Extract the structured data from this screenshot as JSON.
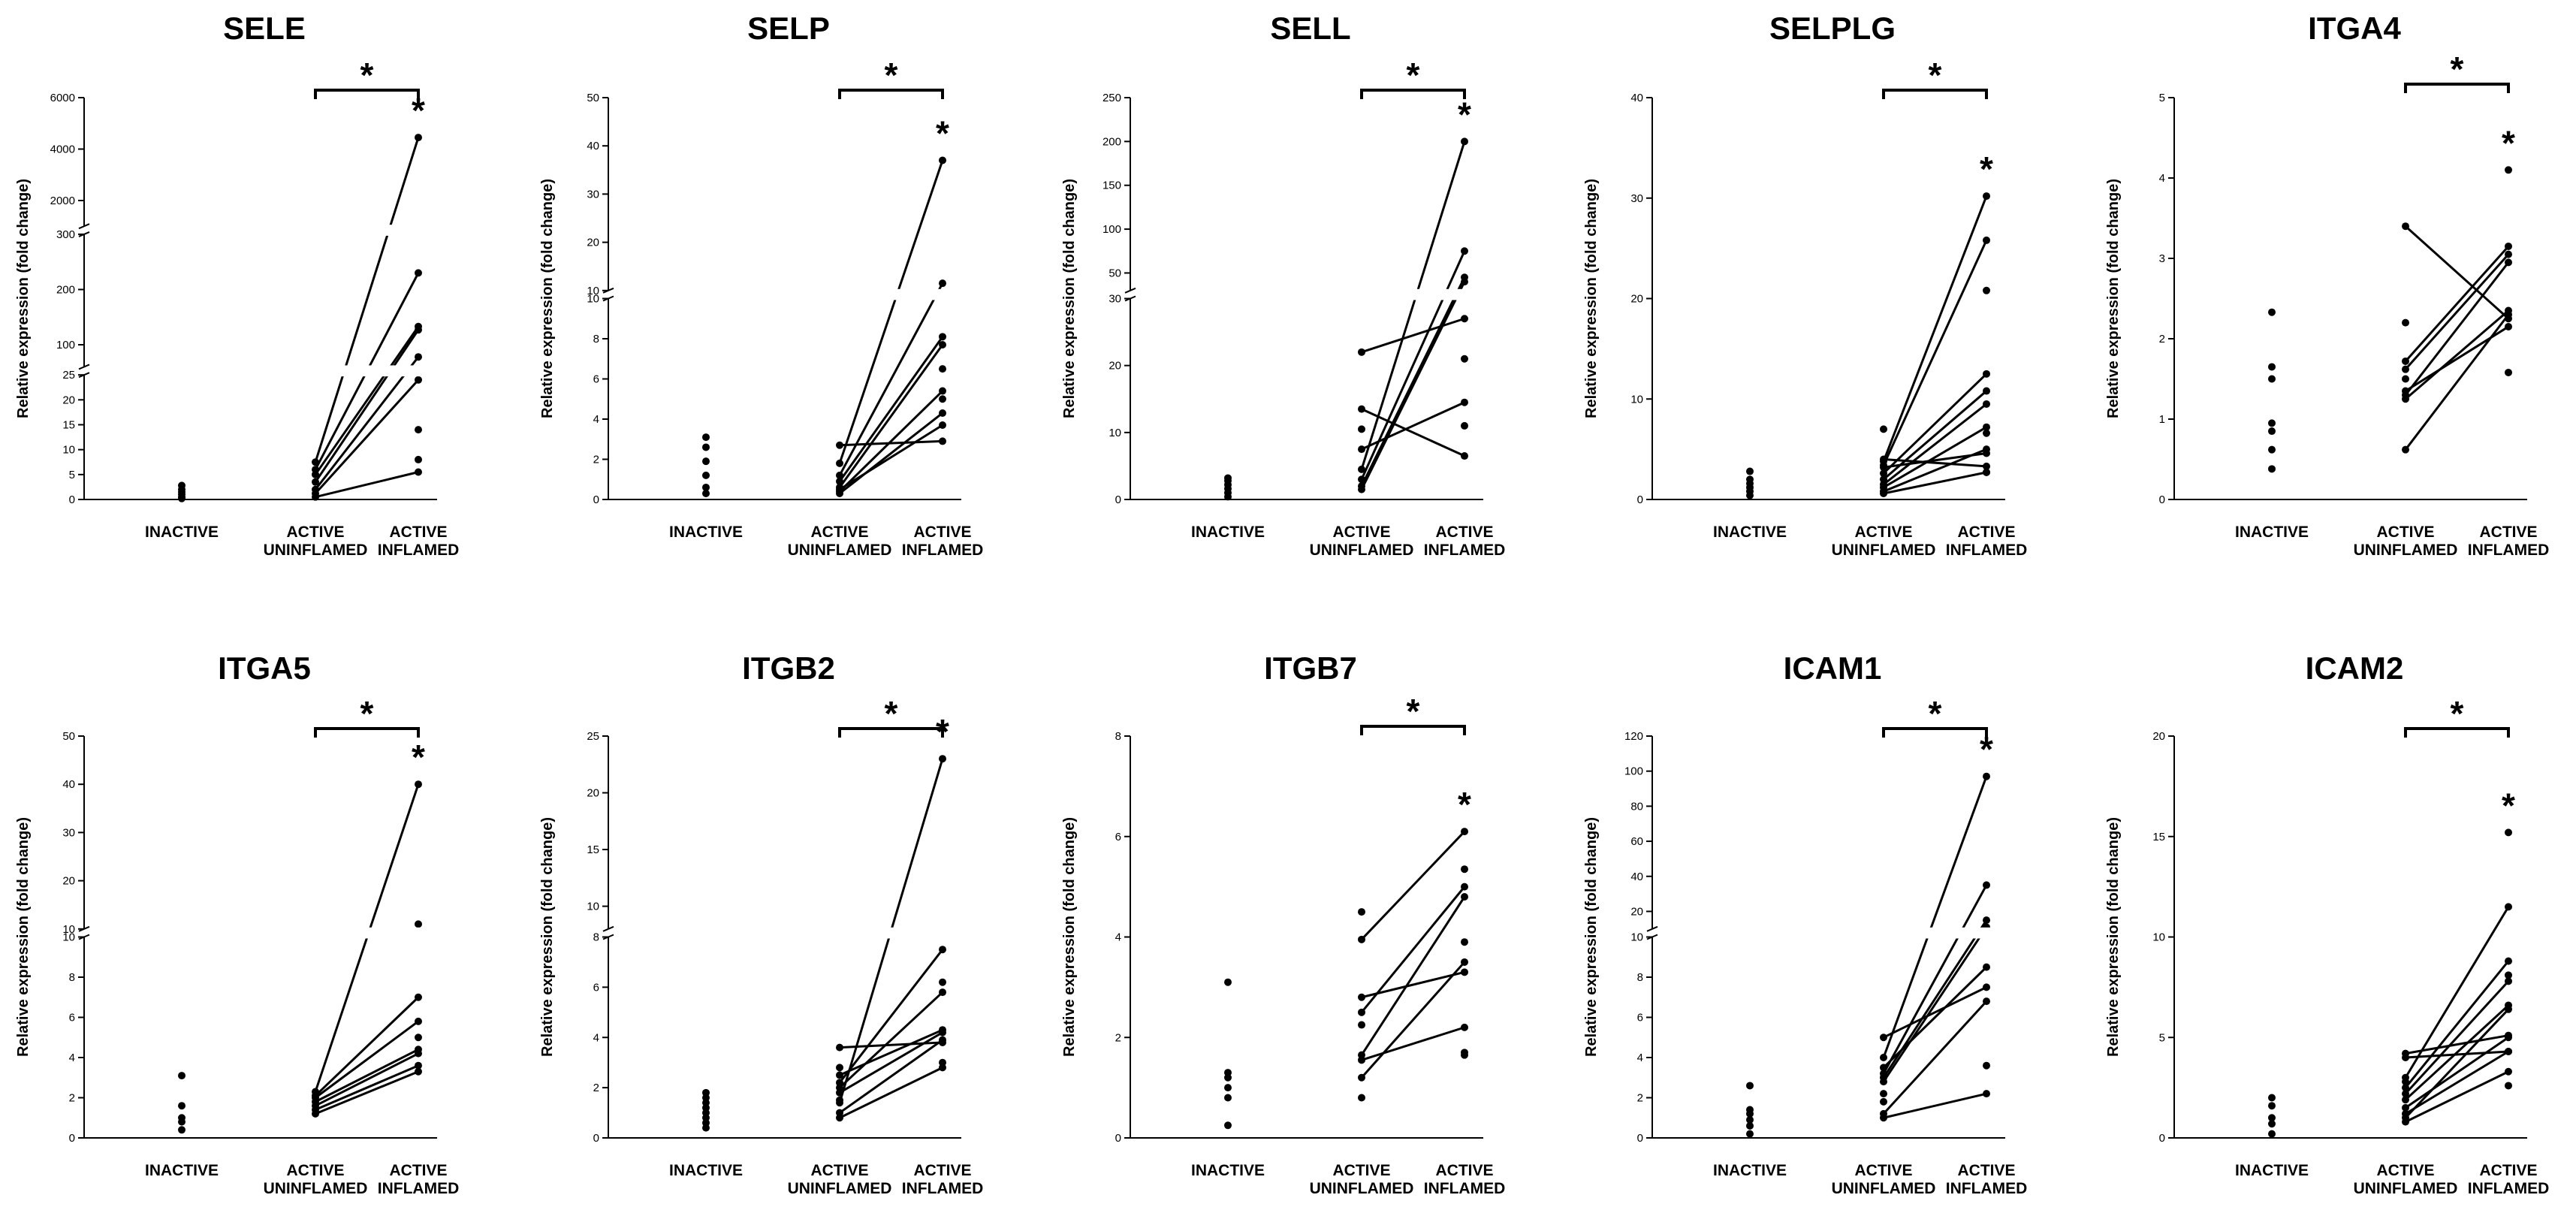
{
  "chart_data": [
    {
      "type": "scatter",
      "title": "SELE",
      "ylabel": "Relative expression (fold change)",
      "categories": [
        "INACTIVE",
        "ACTIVE\nUNINFLAMED",
        "ACTIVE\nINFLAMED"
      ],
      "yticks": [
        0,
        5,
        10,
        15,
        20,
        25,
        100,
        200,
        300,
        2000,
        4000,
        6000
      ],
      "axis_breaks": true,
      "significance": [
        {
          "from": 1,
          "to": 2,
          "label": "*"
        }
      ],
      "point_star": {
        "category": 2,
        "label": "*"
      },
      "inactive": [
        0.2,
        0.5,
        1.0,
        1.5,
        2.0,
        2.8
      ],
      "pairs": [
        [
          7.5,
          4450
        ],
        [
          6.0,
          230
        ],
        [
          5.0,
          133
        ],
        [
          3.5,
          127
        ],
        [
          2.0,
          78
        ],
        [
          1.2,
          24
        ],
        [
          0.5,
          5.5
        ]
      ],
      "unpaired_inflamed": [
        14,
        8
      ]
    },
    {
      "type": "scatter",
      "title": "SELP",
      "ylabel": "Relative expression (fold change)",
      "categories": [
        "INACTIVE",
        "ACTIVE\nUNINFLAMED",
        "ACTIVE\nINFLAMED"
      ],
      "yticks": [
        0,
        2,
        4,
        6,
        8,
        10,
        20,
        30,
        40,
        50
      ],
      "axis_breaks": true,
      "significance": [
        {
          "from": 1,
          "to": 2,
          "label": "*"
        }
      ],
      "point_star": {
        "category": 2,
        "label": "*"
      },
      "inactive": [
        0.3,
        0.6,
        1.2,
        1.9,
        2.6,
        3.1
      ],
      "pairs": [
        [
          2.7,
          2.9
        ],
        [
          1.8,
          37
        ],
        [
          1.2,
          11.5
        ],
        [
          0.9,
          8.1
        ],
        [
          0.6,
          7.7
        ],
        [
          0.4,
          5.4
        ],
        [
          0.3,
          4.3
        ],
        [
          0.5,
          3.7
        ]
      ],
      "unpaired_inflamed": [
        6.5,
        5.0
      ]
    },
    {
      "type": "scatter",
      "title": "SELL",
      "ylabel": "Relative expression (fold change)",
      "categories": [
        "INACTIVE",
        "ACTIVE\nUNINFLAMED",
        "ACTIVE\nINFLAMED"
      ],
      "yticks": [
        0,
        10,
        20,
        30,
        50,
        100,
        150,
        200,
        250
      ],
      "axis_breaks": true,
      "significance": [
        {
          "from": 1,
          "to": 2,
          "label": "*"
        }
      ],
      "point_star": {
        "category": 2,
        "label": "*"
      },
      "inactive": [
        0.4,
        1.0,
        1.6,
        2.2,
        2.8,
        3.2
      ],
      "pairs": [
        [
          22,
          27
        ],
        [
          13.5,
          6.5
        ],
        [
          7.5,
          14.5
        ],
        [
          4.5,
          200
        ],
        [
          3.0,
          75
        ],
        [
          2.0,
          45
        ],
        [
          1.5,
          40
        ]
      ],
      "unpaired_inflamed": [
        21,
        11
      ],
      "unpaired_uninflamed": [
        10.5
      ]
    },
    {
      "type": "scatter",
      "title": "SELPLG",
      "ylabel": "Relative expression (fold change)",
      "categories": [
        "INACTIVE",
        "ACTIVE\nUNINFLAMED",
        "ACTIVE\nINFLAMED"
      ],
      "yticks": [
        0,
        10,
        20,
        30,
        40
      ],
      "axis_breaks": false,
      "significance": [
        {
          "from": 1,
          "to": 2,
          "label": "*"
        }
      ],
      "point_star": {
        "category": 2,
        "label": "*"
      },
      "inactive": [
        0.4,
        0.8,
        1.2,
        1.6,
        2.0,
        2.8
      ],
      "pairs": [
        [
          3.8,
          30.2
        ],
        [
          3.4,
          25.8
        ],
        [
          2.6,
          12.5
        ],
        [
          2.0,
          10.8
        ],
        [
          1.5,
          9.5
        ],
        [
          1.2,
          7.2
        ],
        [
          0.8,
          5.0
        ],
        [
          3.2,
          4.6
        ],
        [
          4.0,
          3.3
        ],
        [
          0.6,
          2.7
        ]
      ],
      "unpaired_inflamed": [
        20.8,
        6.6,
        2.7
      ],
      "unpaired_uninflamed": [
        7.0
      ]
    },
    {
      "type": "scatter",
      "title": "ITGA4",
      "ylabel": "Relative expression (fold change)",
      "categories": [
        "INACTIVE",
        "ACTIVE\nUNINFLAMED",
        "ACTIVE\nINFLAMED"
      ],
      "yticks": [
        0,
        1,
        2,
        3,
        4,
        5
      ],
      "axis_breaks": false,
      "significance": [
        {
          "from": 1,
          "to": 2,
          "label": "*"
        }
      ],
      "point_star": {
        "category": 2,
        "label": "*"
      },
      "inactive": [
        0.38,
        0.62,
        0.85,
        0.95,
        1.5,
        1.65,
        2.33
      ],
      "pairs": [
        [
          3.4,
          2.25
        ],
        [
          1.72,
          3.15
        ],
        [
          1.62,
          3.05
        ],
        [
          1.3,
          2.95
        ],
        [
          1.25,
          2.35
        ],
        [
          1.35,
          2.15
        ],
        [
          0.62,
          2.3
        ]
      ],
      "unpaired_inflamed": [
        4.1,
        1.58
      ],
      "unpaired_uninflamed": [
        2.2,
        1.5
      ]
    },
    {
      "type": "scatter",
      "title": "ITGA5",
      "ylabel": "Relative expression (fold change)",
      "categories": [
        "INACTIVE",
        "ACTIVE\nUNINFLAMED",
        "ACTIVE\nINFLAMED"
      ],
      "yticks": [
        0,
        2,
        4,
        6,
        8,
        10,
        20,
        30,
        40,
        50
      ],
      "axis_breaks": true,
      "significance": [
        {
          "from": 1,
          "to": 2,
          "label": "*"
        }
      ],
      "point_star": {
        "category": 2,
        "label": "*"
      },
      "inactive": [
        0.4,
        0.8,
        1.0,
        1.6,
        3.1
      ],
      "pairs": [
        [
          2.3,
          40
        ],
        [
          2.1,
          7.0
        ],
        [
          2.0,
          5.8
        ],
        [
          1.8,
          4.4
        ],
        [
          1.6,
          4.2
        ],
        [
          1.4,
          3.6
        ],
        [
          1.2,
          3.3
        ]
      ],
      "unpaired_inflamed": [
        11,
        5.0
      ]
    },
    {
      "type": "scatter",
      "title": "ITGB2",
      "ylabel": "Relative expression (fold change)",
      "categories": [
        "INACTIVE",
        "ACTIVE\nUNINFLAMED",
        "ACTIVE\nINFLAMED"
      ],
      "yticks": [
        0,
        2,
        4,
        6,
        8,
        10,
        15,
        20,
        25
      ],
      "axis_breaks": true,
      "significance": [
        {
          "from": 1,
          "to": 2,
          "label": "*"
        }
      ],
      "point_star": {
        "category": 2,
        "label": "*"
      },
      "inactive": [
        0.4,
        0.6,
        0.8,
        1.0,
        1.2,
        1.4,
        1.6,
        1.8
      ],
      "pairs": [
        [
          3.6,
          3.8
        ],
        [
          2.5,
          4.3
        ],
        [
          2.2,
          7.5
        ],
        [
          2.0,
          5.8
        ],
        [
          1.8,
          4.2
        ],
        [
          1.4,
          23
        ],
        [
          1.0,
          3.9
        ],
        [
          0.8,
          2.8
        ]
      ],
      "unpaired_inflamed": [
        6.2,
        3.0
      ],
      "unpaired_uninflamed": [
        2.8,
        1.5
      ]
    },
    {
      "type": "scatter",
      "title": "ITGB7",
      "ylabel": "Relative expression (fold change)",
      "categories": [
        "INACTIVE",
        "ACTIVE\nUNINFLAMED",
        "ACTIVE\nINFLAMED"
      ],
      "yticks": [
        0,
        2,
        4,
        6,
        8
      ],
      "axis_breaks": false,
      "significance": [
        {
          "from": 1,
          "to": 2,
          "label": "*"
        }
      ],
      "point_star": {
        "category": 2,
        "label": "*"
      },
      "inactive": [
        0.25,
        0.8,
        1.0,
        1.2,
        1.3,
        3.1
      ],
      "pairs": [
        [
          3.95,
          6.1
        ],
        [
          2.8,
          3.3
        ],
        [
          2.5,
          5.0
        ],
        [
          1.65,
          4.8
        ],
        [
          1.55,
          2.2
        ],
        [
          1.2,
          3.5
        ]
      ],
      "unpaired_inflamed": [
        5.35,
        3.9,
        1.7,
        1.65
      ],
      "unpaired_uninflamed": [
        4.5,
        2.25,
        0.8
      ]
    },
    {
      "type": "scatter",
      "title": "ICAM1",
      "ylabel": "Relative expression (fold change)",
      "categories": [
        "INACTIVE",
        "ACTIVE\nUNINFLAMED",
        "ACTIVE\nINFLAMED"
      ],
      "yticks": [
        0,
        2,
        4,
        6,
        8,
        10,
        20,
        40,
        60,
        80,
        100,
        120
      ],
      "axis_breaks": true,
      "significance": [
        {
          "from": 1,
          "to": 2,
          "label": "*"
        }
      ],
      "point_star": {
        "category": 2,
        "label": "*"
      },
      "inactive": [
        0.2,
        0.6,
        0.9,
        1.2,
        1.4,
        2.6
      ],
      "pairs": [
        [
          5.0,
          7.5
        ],
        [
          4.0,
          97
        ],
        [
          3.5,
          8.5
        ],
        [
          3.2,
          35
        ],
        [
          3.0,
          15
        ],
        [
          2.8,
          11
        ],
        [
          1.2,
          6.8
        ],
        [
          1.0,
          2.2
        ]
      ],
      "unpaired_inflamed": [
        3.6
      ],
      "unpaired_uninflamed": [
        2.2,
        1.8
      ]
    },
    {
      "type": "scatter",
      "title": "ICAM2",
      "ylabel": "Relative expression (fold change)",
      "categories": [
        "INACTIVE",
        "ACTIVE\nUNINFLAMED",
        "ACTIVE\nINFLAMED"
      ],
      "yticks": [
        0,
        5,
        10,
        15,
        20
      ],
      "axis_breaks": false,
      "significance": [
        {
          "from": 1,
          "to": 2,
          "label": "*"
        }
      ],
      "point_star": {
        "category": 2,
        "label": "*"
      },
      "inactive": [
        0.2,
        0.7,
        1.0,
        1.6,
        2.0
      ],
      "pairs": [
        [
          4.2,
          5.1
        ],
        [
          4.0,
          4.3
        ],
        [
          3.0,
          11.5
        ],
        [
          2.5,
          8.8
        ],
        [
          2.2,
          7.8
        ],
        [
          1.9,
          6.6
        ],
        [
          1.5,
          5.0
        ],
        [
          1.2,
          4.3
        ],
        [
          1.0,
          6.4
        ],
        [
          0.8,
          3.3
        ]
      ],
      "unpaired_inflamed": [
        15.2,
        8.1,
        2.6
      ],
      "unpaired_uninflamed": [
        2.8
      ]
    }
  ]
}
